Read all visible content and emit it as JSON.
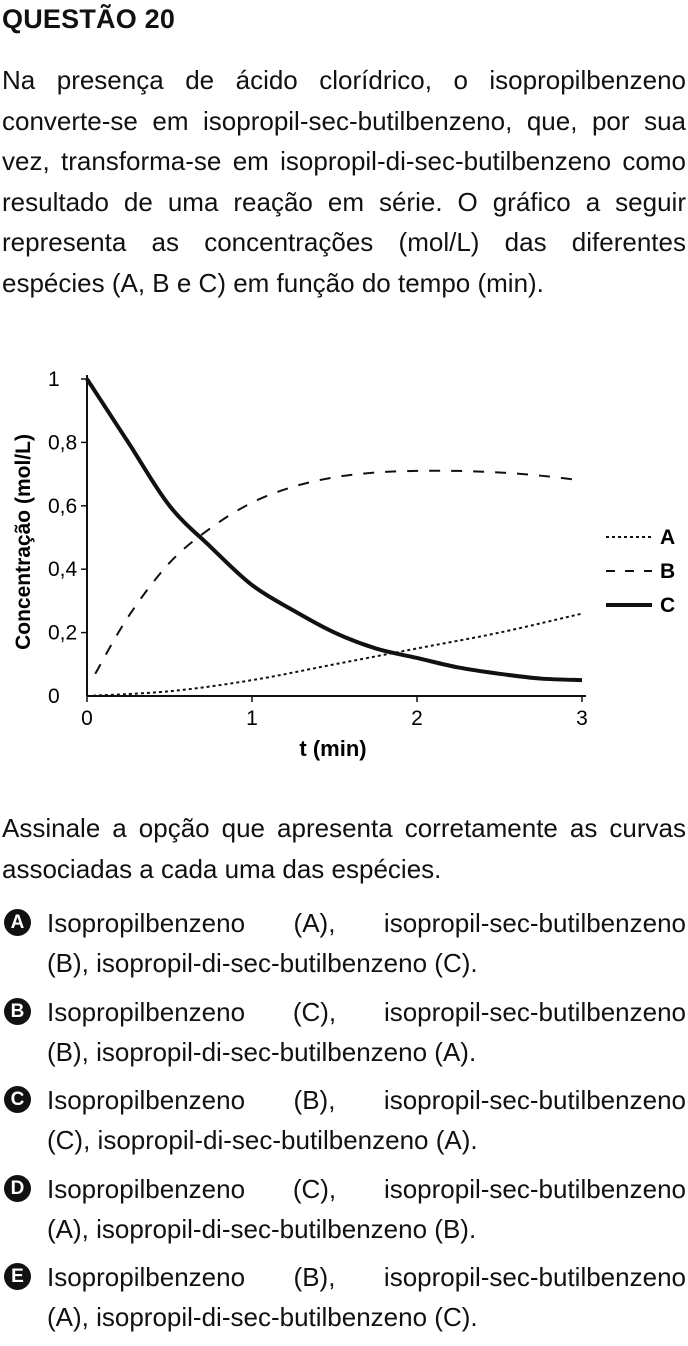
{
  "question": {
    "title": "QUESTÃO 20",
    "intro_lines": [
      "Na presença de ácido clorídrico, o isopropilbenzeno",
      "converte-se em isopropil-sec-butilbenzeno, que,",
      "por sua vez, transforma-se em isopropil-di-sec-",
      "butilbenzeno como resultado de uma reação em",
      "série. O gráfico a seguir representa as concentrações",
      "(mol/L) das diferentes espécies (A, B e C) em função",
      "do tempo (min)."
    ],
    "prompt_lines": [
      "Assinale a opção que apresenta corretamente as",
      "curvas associadas a cada uma das espécies."
    ]
  },
  "chart_data": {
    "type": "line",
    "xlabel": "t (min)",
    "ylabel": "Concentração (mol/L)",
    "xlim": [
      0,
      3
    ],
    "ylim": [
      0,
      1
    ],
    "x_ticks": [
      "0",
      "1",
      "2",
      "3"
    ],
    "y_ticks": [
      "0",
      "0,2",
      "0,4",
      "0,6",
      "0,8",
      "1"
    ],
    "grid": false,
    "legend_position": "right",
    "series": [
      {
        "name": "A",
        "style": "dotted",
        "x": [
          0,
          0.5,
          1,
          1.5,
          2,
          2.5,
          3
        ],
        "y": [
          0,
          0.015,
          0.05,
          0.1,
          0.15,
          0.2,
          0.26
        ]
      },
      {
        "name": "B",
        "style": "dashed",
        "x": [
          0.05,
          0.25,
          0.5,
          0.75,
          1,
          1.25,
          1.5,
          1.75,
          2,
          2.25,
          2.5,
          2.75,
          3
        ],
        "y": [
          0.07,
          0.25,
          0.42,
          0.53,
          0.61,
          0.66,
          0.69,
          0.705,
          0.71,
          0.71,
          0.705,
          0.695,
          0.68
        ]
      },
      {
        "name": "C",
        "style": "solid",
        "x": [
          0,
          0.25,
          0.5,
          0.75,
          1,
          1.25,
          1.5,
          1.75,
          2,
          2.25,
          2.5,
          2.75,
          3
        ],
        "y": [
          1,
          0.8,
          0.6,
          0.47,
          0.35,
          0.27,
          0.2,
          0.15,
          0.12,
          0.09,
          0.07,
          0.055,
          0.05
        ]
      }
    ]
  },
  "options": [
    {
      "letter": "A",
      "line1": "Isopropilbenzeno (A), isopropil-sec-butilbenzeno",
      "line2": "(B), isopropil-di-sec-butilbenzeno (C)."
    },
    {
      "letter": "B",
      "line1": "Isopropilbenzeno (C), isopropil-sec-butilbenzeno",
      "line2": "(B), isopropil-di-sec-butilbenzeno (A)."
    },
    {
      "letter": "C",
      "line1": "Isopropilbenzeno (B), isopropil-sec-butilbenzeno",
      "line2": "(C), isopropil-di-sec-butilbenzeno (A)."
    },
    {
      "letter": "D",
      "line1": "Isopropilbenzeno (C), isopropil-sec-butilbenzeno",
      "line2": "(A), isopropil-di-sec-butilbenzeno (B)."
    },
    {
      "letter": "E",
      "line1": "Isopropilbenzeno (B), isopropil-sec-butilbenzeno",
      "line2": "(A), isopropil-di-sec-butilbenzeno (C)."
    }
  ]
}
